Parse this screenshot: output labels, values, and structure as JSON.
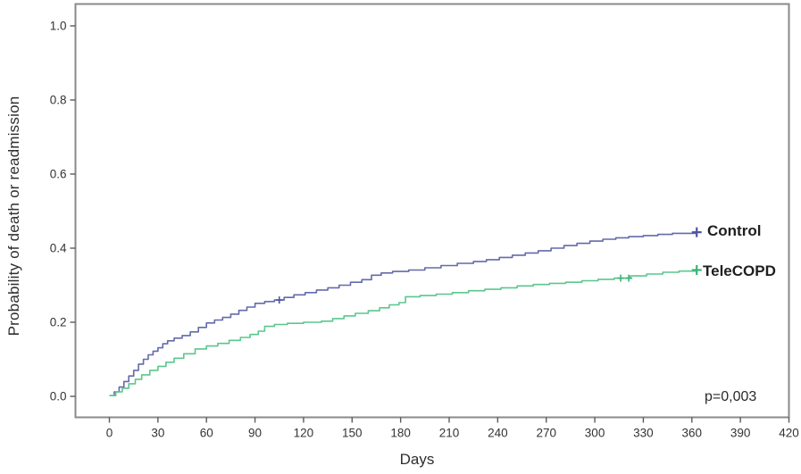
{
  "figure": {
    "background_color": "#ffffff",
    "axis_box_color": "#8a8a8a",
    "tick_color": "#5a5a5a",
    "text_color": "#333333"
  },
  "chart_data": {
    "type": "line",
    "subtype": "kaplan_meier_step_curves",
    "title": "",
    "xlabel": "Days",
    "ylabel": "Probability of death or readmission",
    "xlim": [
      0,
      420
    ],
    "ylim": [
      0.0,
      1.0
    ],
    "x_ticks": [
      0,
      30,
      60,
      90,
      120,
      150,
      180,
      210,
      240,
      270,
      300,
      330,
      360,
      390,
      420
    ],
    "y_ticks": [
      0.0,
      0.2,
      0.4,
      0.6,
      0.8,
      1.0
    ],
    "y_tick_labels": [
      "0.0",
      "0.2",
      "0.4",
      "0.6",
      "0.8",
      "1.0"
    ],
    "grid": false,
    "legend_position": "labels-at-curve-ends",
    "annotation": "p=0,003",
    "series": [
      {
        "name": "Control",
        "color": "#636aab",
        "marker_color": "#4d55a3",
        "censor_days": [
          105
        ],
        "end_marker_day": 363,
        "points": [
          [
            0,
            0.002
          ],
          [
            3,
            0.012
          ],
          [
            6,
            0.025
          ],
          [
            9,
            0.04
          ],
          [
            12,
            0.055
          ],
          [
            15,
            0.07
          ],
          [
            18,
            0.087
          ],
          [
            21,
            0.1
          ],
          [
            24,
            0.112
          ],
          [
            27,
            0.122
          ],
          [
            30,
            0.131
          ],
          [
            33,
            0.142
          ],
          [
            36,
            0.15
          ],
          [
            40,
            0.157
          ],
          [
            45,
            0.164
          ],
          [
            50,
            0.174
          ],
          [
            55,
            0.186
          ],
          [
            60,
            0.198
          ],
          [
            65,
            0.206
          ],
          [
            70,
            0.213
          ],
          [
            75,
            0.222
          ],
          [
            80,
            0.232
          ],
          [
            85,
            0.241
          ],
          [
            90,
            0.251
          ],
          [
            96,
            0.256
          ],
          [
            102,
            0.26
          ],
          [
            108,
            0.267
          ],
          [
            114,
            0.274
          ],
          [
            121,
            0.28
          ],
          [
            128,
            0.287
          ],
          [
            135,
            0.293
          ],
          [
            142,
            0.3
          ],
          [
            149,
            0.308
          ],
          [
            156,
            0.315
          ],
          [
            162,
            0.327
          ],
          [
            168,
            0.333
          ],
          [
            175,
            0.337
          ],
          [
            185,
            0.341
          ],
          [
            195,
            0.347
          ],
          [
            205,
            0.353
          ],
          [
            215,
            0.359
          ],
          [
            225,
            0.364
          ],
          [
            233,
            0.369
          ],
          [
            241,
            0.375
          ],
          [
            249,
            0.381
          ],
          [
            257,
            0.387
          ],
          [
            265,
            0.393
          ],
          [
            273,
            0.4
          ],
          [
            281,
            0.407
          ],
          [
            289,
            0.413
          ],
          [
            297,
            0.419
          ],
          [
            305,
            0.424
          ],
          [
            313,
            0.428
          ],
          [
            321,
            0.431
          ],
          [
            330,
            0.434
          ],
          [
            339,
            0.437
          ],
          [
            348,
            0.44
          ],
          [
            363,
            0.443
          ]
        ]
      },
      {
        "name": "TeleCOPD",
        "color": "#5cc68e",
        "marker_color": "#3cb377",
        "censor_days": [
          316,
          321
        ],
        "end_marker_day": 363,
        "points": [
          [
            0,
            0.002
          ],
          [
            4,
            0.012
          ],
          [
            8,
            0.022
          ],
          [
            12,
            0.034
          ],
          [
            16,
            0.046
          ],
          [
            20,
            0.058
          ],
          [
            25,
            0.07
          ],
          [
            30,
            0.081
          ],
          [
            35,
            0.092
          ],
          [
            40,
            0.103
          ],
          [
            46,
            0.115
          ],
          [
            53,
            0.128
          ],
          [
            60,
            0.136
          ],
          [
            67,
            0.143
          ],
          [
            74,
            0.151
          ],
          [
            81,
            0.159
          ],
          [
            87,
            0.167
          ],
          [
            92,
            0.176
          ],
          [
            96,
            0.189
          ],
          [
            102,
            0.194
          ],
          [
            110,
            0.197
          ],
          [
            120,
            0.2
          ],
          [
            131,
            0.203
          ],
          [
            138,
            0.21
          ],
          [
            145,
            0.217
          ],
          [
            152,
            0.224
          ],
          [
            160,
            0.231
          ],
          [
            167,
            0.239
          ],
          [
            173,
            0.247
          ],
          [
            179,
            0.253
          ],
          [
            183,
            0.269
          ],
          [
            192,
            0.272
          ],
          [
            202,
            0.276
          ],
          [
            212,
            0.28
          ],
          [
            222,
            0.285
          ],
          [
            232,
            0.289
          ],
          [
            242,
            0.293
          ],
          [
            252,
            0.298
          ],
          [
            262,
            0.302
          ],
          [
            272,
            0.305
          ],
          [
            282,
            0.308
          ],
          [
            292,
            0.312
          ],
          [
            302,
            0.316
          ],
          [
            312,
            0.319
          ],
          [
            322,
            0.325
          ],
          [
            332,
            0.33
          ],
          [
            342,
            0.335
          ],
          [
            352,
            0.338
          ],
          [
            363,
            0.341
          ]
        ]
      }
    ]
  }
}
